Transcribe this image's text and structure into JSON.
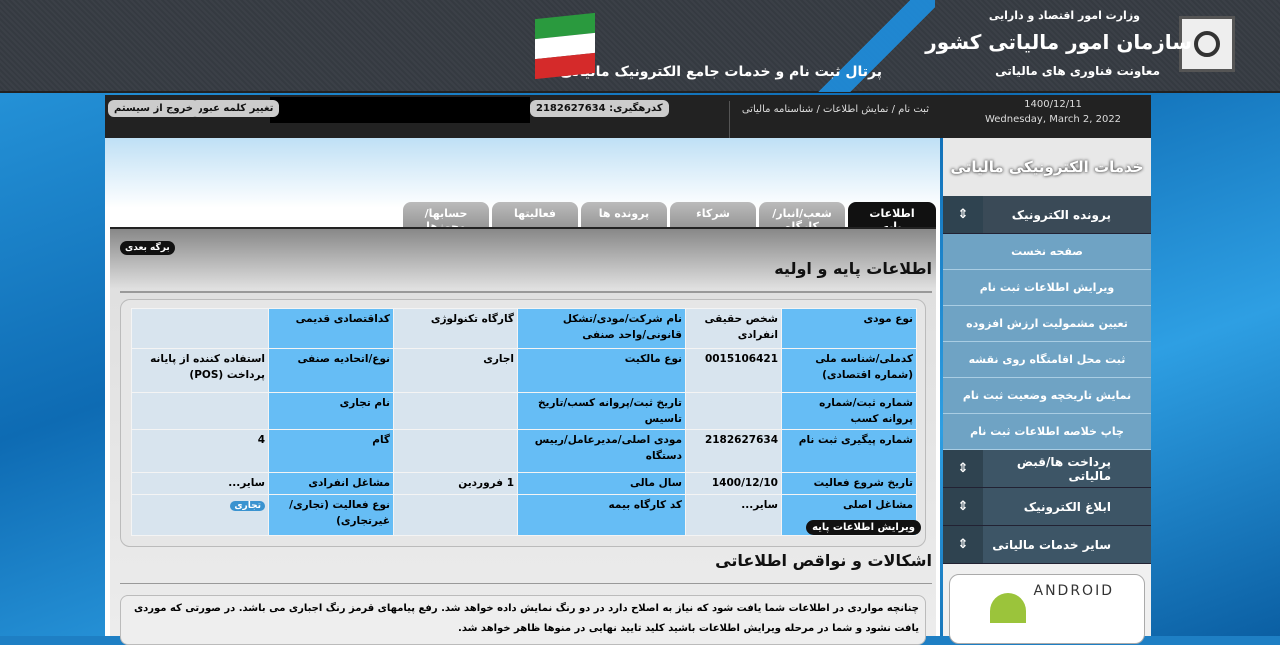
{
  "header": {
    "ministry": "وزارت امور اقتصاد و دارایی",
    "org": "سازمان امور مالیاتی کشور",
    "deputy": "معاونت فناوری های مالیاتی",
    "portal": "پرتال ثبت نام و خدمات جامع الکترونیک مالیاتی"
  },
  "topbar": {
    "date_fa": "1400/12/11",
    "date_en": "Wednesday, March 2, 2022",
    "breadcrumb": "ثبت نام / نمایش اطلاعات / شناسنامه مالیاتی",
    "tracking": "کدرهگیری: 2182627634",
    "change_password": "تغییر کلمه عبور",
    "logout": "خروج از سیستم"
  },
  "tabs": [
    "اطلاعات پایه",
    "شعب/انبار/کارگاه",
    "شرکاء",
    "پرونده ها",
    "فعالیتها",
    "حسابها/مجوزها"
  ],
  "next_page": "برگه بعدی",
  "section_title": "اطلاعات پایه و اولیه",
  "table": [
    [
      "نوع مودی",
      "شخص حقیقی انفرادی",
      "نام شرکت/مودی/تشکل قانونی/واحد صنفی",
      "گارگاه تکنولوژی",
      "کداقتصادی قدیمی",
      ""
    ],
    [
      "کدملی/شناسه ملی (شماره اقتصادی)",
      "0015106421",
      "نوع مالکیت",
      "اجاری",
      "نوع/اتحادیه صنفی",
      "استفاده کننده از پایانه پرداخت (POS)"
    ],
    [
      "شماره ثبت/شماره پروانه کسب",
      "",
      "تاریخ ثبت/پروانه کسب/تاریخ تاسیس",
      "",
      "نام تجاری",
      ""
    ],
    [
      "شماره پیگیری ثبت نام",
      "2182627634",
      "مودی اصلی/مدیرعامل/رییس دستگاه",
      "",
      "گام",
      "4"
    ],
    [
      "تاریخ شروع فعالیت",
      "1400/12/10",
      "سال مالی",
      "1 فروردین",
      "مشاغل انفرادی",
      "سایر..."
    ],
    [
      "مشاغل اصلی",
      "سایر...",
      "کد کارگاه بیمه",
      "",
      "نوع فعالیت (تجاری/غیرتجاری)",
      "تجاری"
    ]
  ],
  "edit_button": "ویرایش اطلاعات پایه",
  "issues_title": "اشکالات و نواقص اطلاعاتی",
  "notice": "چنانچه مواردی در اطلاعات شما یافت شود که نیاز به اصلاح دارد در دو رنگ نمایش داده خواهد شد. رفع پیامهای قرمز رنگ اجباری می باشد. در صورتی که موردی یافت نشود و شما در مرحله ویرایش اطلاعات باشید کلید تایید نهایی در منوها ظاهر خواهد شد.",
  "sidebar": {
    "logo_text": "خدمات الکترونیکی مالیاتی",
    "groups": [
      {
        "label": "پرونده الکترونیک",
        "items": [
          "صفحه نخست",
          "ویرایش اطلاعات ثبت نام",
          "تعیین مشمولیت ارزش افزوده",
          "ثبت محل اقامتگاه روی نقشه",
          "نمایش تاریخچه وضعیت ثبت نام",
          "چاپ خلاصه اطلاعات ثبت نام"
        ]
      },
      {
        "label": "پرداخت ها/قبض مالیاتی"
      },
      {
        "label": "ابلاغ الکترونیک"
      },
      {
        "label": "سایر خدمات مالیاتی"
      }
    ],
    "android": "ANDROID"
  }
}
